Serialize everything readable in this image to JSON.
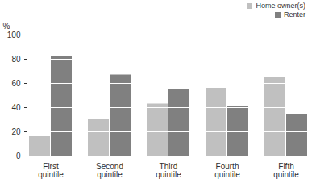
{
  "chart_data": {
    "type": "bar",
    "categories": [
      "First quintile",
      "Second quintile",
      "Third quintile",
      "Fourth quintile",
      "Fifth quintile"
    ],
    "series": [
      {
        "name": "Home owner(s)",
        "color": "#c0c0c0",
        "values": [
          16,
          30,
          43,
          56,
          65
        ]
      },
      {
        "name": "Renter",
        "color": "#808080",
        "values": [
          82,
          67,
          55,
          41,
          34
        ]
      }
    ],
    "y_label": "%",
    "ylim": [
      0,
      100
    ],
    "yticks": [
      0,
      20,
      40,
      60,
      80,
      100
    ],
    "grid": true,
    "legend": "top-right"
  }
}
